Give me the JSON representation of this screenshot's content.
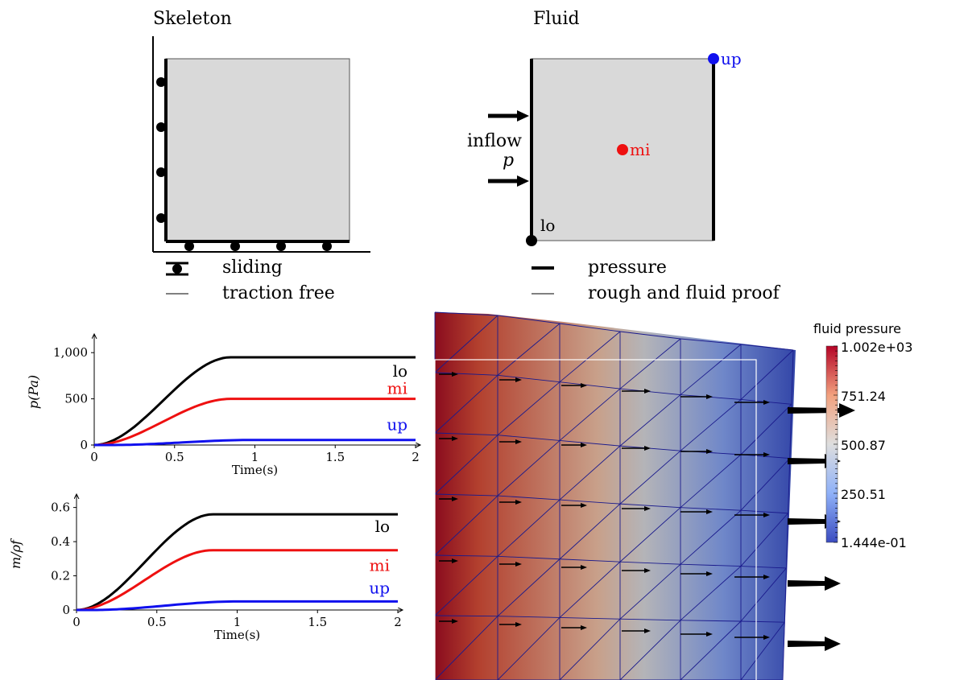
{
  "skeleton": {
    "title": "Skeleton",
    "legend": {
      "sliding": "sliding",
      "traction_free": "traction free"
    }
  },
  "fluid": {
    "title": "Fluid",
    "inflow": "inflow",
    "p_symbol": "p",
    "points": {
      "up": "up",
      "mi": "mi",
      "lo": "lo"
    },
    "legend": {
      "pressure": "pressure",
      "rough": "rough and fluid proof"
    },
    "colors": {
      "up": "#1010ee",
      "mi": "#ee1010",
      "lo": "#000000"
    }
  },
  "chart_data": [
    {
      "type": "line",
      "ylabel": "p(Pa)",
      "xlabel": "Time(s)",
      "xlim": [
        0,
        2
      ],
      "ylim": [
        0,
        1150
      ],
      "xticks": [
        "0",
        "0.5",
        "1",
        "1.5",
        "2"
      ],
      "yticks": [
        "0",
        "500",
        "1,000"
      ],
      "ytick_values": [
        0,
        500,
        1000
      ],
      "series": [
        {
          "name": "lo",
          "final": 950,
          "color": "#000000"
        },
        {
          "name": "mi",
          "final": 500,
          "color": "#ee1010"
        },
        {
          "name": "up",
          "final": 55,
          "color": "#1010ee"
        }
      ]
    },
    {
      "type": "line",
      "ylabel": "m/ρf",
      "xlabel": "Time(s)",
      "xlim": [
        0,
        2
      ],
      "ylim": [
        0,
        0.65
      ],
      "xticks": [
        "0",
        "0.5",
        "1",
        "1.5",
        "2"
      ],
      "yticks": [
        "0",
        "0.2",
        "0.4",
        "0.6"
      ],
      "ytick_values": [
        0,
        0.2,
        0.4,
        0.6
      ],
      "series": [
        {
          "name": "lo",
          "final": 0.56,
          "color": "#000000"
        },
        {
          "name": "mi",
          "final": 0.35,
          "color": "#ee1010"
        },
        {
          "name": "up",
          "final": 0.05,
          "color": "#1010ee"
        }
      ]
    }
  ],
  "colorbar": {
    "title": "fluid pressure",
    "ticks": [
      "1.002e+03",
      "751.24",
      "500.87",
      "250.51",
      "1.444e-01"
    ],
    "colors": [
      "#b40426",
      "#f7a889",
      "#dddddd",
      "#8db0fe",
      "#3b4cc0"
    ]
  }
}
